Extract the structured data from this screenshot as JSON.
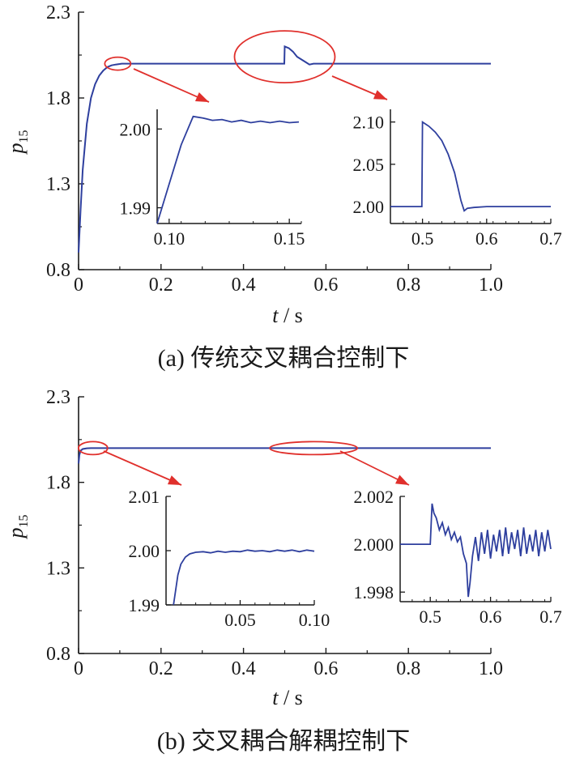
{
  "chart_data": [
    {
      "type": "line",
      "caption": "(a) 传统交叉耦合控制下",
      "xlabel_var": "t",
      "xlabel_unit": " / s",
      "ylabel_var": "p",
      "ylabel_sub": "15",
      "xlim": [
        0,
        1.0
      ],
      "ylim": [
        0.8,
        2.3
      ],
      "xticks": [
        "0",
        "0.2",
        "0.4",
        "0.6",
        "0.8",
        "1.0"
      ],
      "yticks": [
        "0.8",
        "1.3",
        "1.8",
        "2.3"
      ],
      "series": [
        {
          "color": "#2e3f9e",
          "x": [
            0,
            0.005,
            0.01,
            0.02,
            0.03,
            0.04,
            0.05,
            0.06,
            0.07,
            0.08,
            0.09,
            0.1,
            0.105,
            0.11,
            0.12,
            0.15,
            0.2,
            0.3,
            0.4,
            0.499,
            0.5,
            0.51,
            0.52,
            0.53,
            0.55,
            0.56,
            0.57,
            0.6,
            0.7,
            0.8,
            0.9,
            1.0
          ],
          "y": [
            0.9,
            1.15,
            1.38,
            1.65,
            1.8,
            1.88,
            1.93,
            1.96,
            1.98,
            1.99,
            1.995,
            1.998,
            2.0,
            2.0,
            2.0,
            2.0,
            2.0,
            2.0,
            2.0,
            2.0,
            2.1,
            2.09,
            2.07,
            2.04,
            2.01,
            1.995,
            2.0,
            2.0,
            2.0,
            2.0,
            2.0,
            2.0
          ]
        }
      ],
      "insets": [
        {
          "xlim": [
            0.095,
            0.155
          ],
          "ylim": [
            1.988,
            2.0025
          ],
          "xticks": [
            "0.10",
            "0.15"
          ],
          "yticks": [
            "1.99",
            "2.00"
          ],
          "x": [
            0.095,
            0.1,
            0.105,
            0.11,
            0.114,
            0.118,
            0.122,
            0.126,
            0.13,
            0.134,
            0.138,
            0.142,
            0.146,
            0.15,
            0.154
          ],
          "y": [
            1.9875,
            1.993,
            1.998,
            2.0016,
            2.0014,
            2.0011,
            2.0012,
            2.0009,
            2.0011,
            2.0008,
            2.001,
            2.0008,
            2.001,
            2.0008,
            2.0009
          ]
        },
        {
          "xlim": [
            0.45,
            0.7
          ],
          "ylim": [
            1.98,
            2.115
          ],
          "xticks": [
            "0.5",
            "0.6",
            "0.7"
          ],
          "yticks": [
            "2.00",
            "2.05",
            "2.10"
          ],
          "x": [
            0.45,
            0.499,
            0.5,
            0.51,
            0.52,
            0.53,
            0.54,
            0.55,
            0.56,
            0.565,
            0.57,
            0.58,
            0.6,
            0.62,
            0.64,
            0.66,
            0.68,
            0.7
          ],
          "y": [
            2.0,
            2.0,
            2.1,
            2.095,
            2.088,
            2.078,
            2.062,
            2.04,
            2.007,
            1.995,
            1.998,
            1.999,
            2.0,
            2.0,
            2.0,
            2.0,
            2.0,
            2.0
          ]
        }
      ]
    },
    {
      "type": "line",
      "caption": "(b) 交叉耦合解耦控制下",
      "xlabel_var": "t",
      "xlabel_unit": " / s",
      "ylabel_var": "p",
      "ylabel_sub": "15",
      "xlim": [
        0,
        1.0
      ],
      "ylim": [
        0.8,
        2.3
      ],
      "xticks": [
        "0",
        "0.2",
        "0.4",
        "0.6",
        "0.8",
        "1.0"
      ],
      "yticks": [
        "0.8",
        "1.3",
        "1.8",
        "2.3"
      ],
      "series": [
        {
          "color": "#2e3f9e",
          "x": [
            0,
            0.002,
            0.005,
            0.01,
            0.02,
            0.03,
            0.05,
            0.1,
            0.2,
            0.3,
            0.4,
            0.5,
            0.6,
            0.7,
            0.8,
            0.9,
            1.0
          ],
          "y": [
            1.91,
            1.96,
            1.985,
            1.995,
            1.999,
            2.0,
            2.0,
            2.0,
            2.0,
            2.0,
            2.0,
            2.0,
            2.0,
            2.0,
            2.0,
            2.0,
            2.0
          ]
        }
      ],
      "insets": [
        {
          "xlim": [
            0.0,
            0.1
          ],
          "ylim": [
            1.99,
            2.01
          ],
          "xticks": [
            "0.05",
            "0.10"
          ],
          "yticks": [
            "1.99",
            "2.00",
            "2.01"
          ],
          "x": [
            0.005,
            0.008,
            0.01,
            0.013,
            0.016,
            0.02,
            0.025,
            0.03,
            0.035,
            0.04,
            0.045,
            0.05,
            0.055,
            0.06,
            0.065,
            0.07,
            0.075,
            0.08,
            0.085,
            0.09,
            0.095,
            0.1
          ],
          "y": [
            1.99,
            1.9955,
            1.9975,
            1.9988,
            1.9994,
            1.9997,
            1.9998,
            1.9996,
            1.9999,
            1.9997,
            1.9999,
            1.9998,
            2.0001,
            1.9999,
            2.0,
            1.9998,
            2.0001,
            1.9999,
            2.0001,
            1.9998,
            2.0001,
            1.9999
          ]
        },
        {
          "xlim": [
            0.45,
            0.7
          ],
          "ylim": [
            1.9976,
            2.002
          ],
          "xticks": [
            "0.5",
            "0.6",
            "0.7"
          ],
          "yticks": [
            "1.998",
            "2.000",
            "2.002"
          ],
          "x": [
            0.45,
            0.46,
            0.47,
            0.48,
            0.49,
            0.5,
            0.503,
            0.506,
            0.51,
            0.515,
            0.52,
            0.525,
            0.53,
            0.535,
            0.54,
            0.545,
            0.55,
            0.555,
            0.56,
            0.563,
            0.566,
            0.57,
            0.575,
            0.58,
            0.585,
            0.59,
            0.595,
            0.6,
            0.605,
            0.61,
            0.615,
            0.62,
            0.625,
            0.63,
            0.635,
            0.64,
            0.645,
            0.65,
            0.655,
            0.66,
            0.665,
            0.67,
            0.675,
            0.68,
            0.685,
            0.69,
            0.695,
            0.7
          ],
          "y": [
            2.0,
            2.0,
            2.0,
            2.0,
            2.0,
            2.0,
            2.0017,
            2.0013,
            2.0011,
            2.0006,
            2.0009,
            2.0004,
            2.0007,
            2.0002,
            2.0005,
            2.0001,
            2.0003,
            1.9996,
            1.9992,
            1.9978,
            1.9984,
            1.9995,
            2.0003,
            1.9993,
            2.0005,
            1.9996,
            2.0006,
            1.9994,
            2.0004,
            1.9997,
            2.0006,
            1.9995,
            2.0007,
            1.9996,
            2.0005,
            1.9998,
            2.0006,
            1.9995,
            2.0007,
            1.9996,
            2.0004,
            1.9997,
            2.0006,
            1.9995,
            2.0005,
            1.9997,
            2.0006,
            1.9998
          ]
        }
      ]
    }
  ]
}
